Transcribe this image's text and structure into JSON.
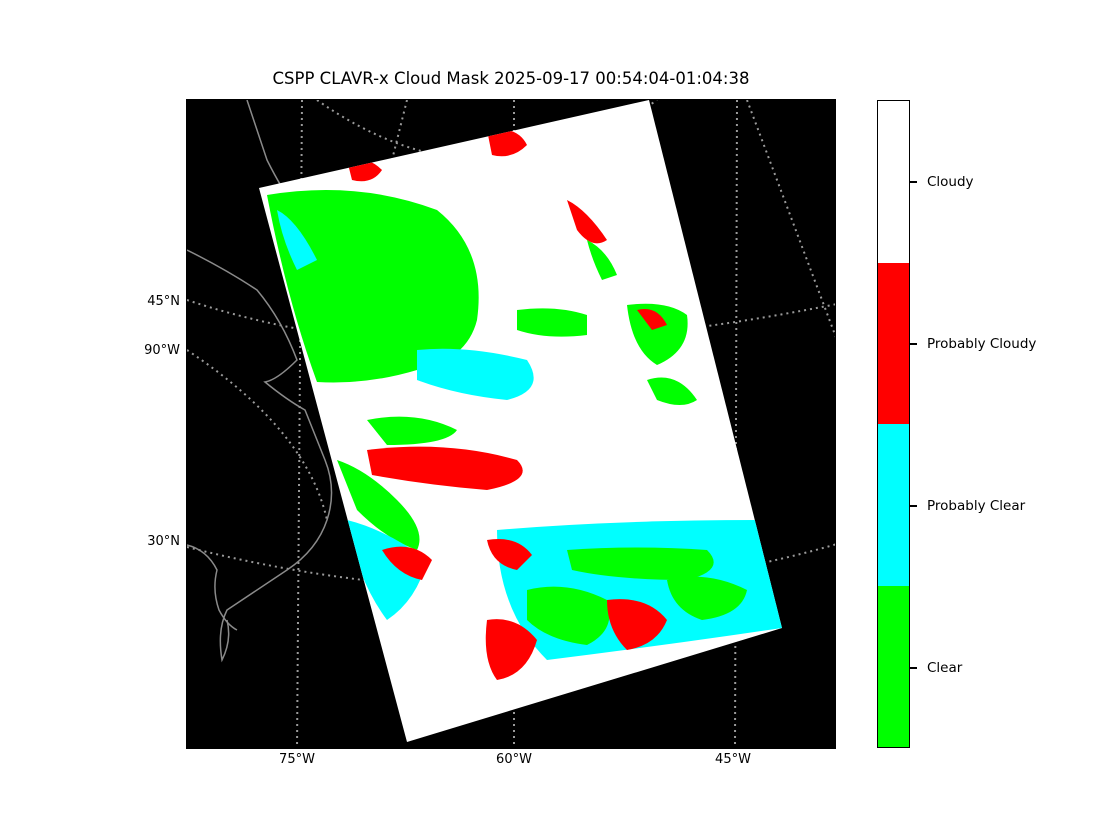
{
  "title": "CSPP CLAVR-x Cloud Mask 2025-09-17 00:54:04-01:04:38",
  "map": {
    "projection": "lambert-conformal",
    "background_color": "#000000",
    "coastline_color": "#808080",
    "graticule_style": "dotted-gray",
    "lat_labels": [
      "45°N",
      "90°W",
      "30°N"
    ],
    "lon_labels": [
      "75°W",
      "60°W",
      "45°W"
    ]
  },
  "colorbar": {
    "categories": [
      {
        "label": "Cloudy",
        "color": "#ffffff"
      },
      {
        "label": "Probably Cloudy",
        "color": "#ff0000"
      },
      {
        "label": "Probably Clear",
        "color": "#00ffff"
      },
      {
        "label": "Clear",
        "color": "#00ff00"
      }
    ]
  }
}
